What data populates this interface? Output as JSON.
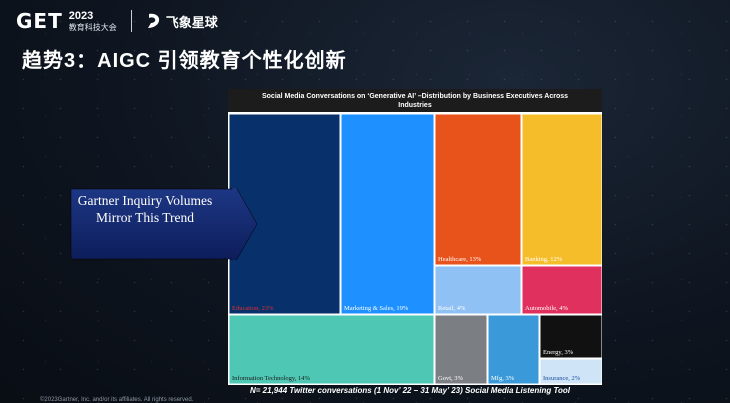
{
  "header": {
    "logo_mark": "GET",
    "logo_year": "2023",
    "logo_sub": "教育科技大会",
    "brand2": "飞象星球"
  },
  "slide": {
    "title": "趋势3：AIGC 引领教育个性化创新",
    "copyright": "©2023Gartner, Inc. and/or its affiliates. All rights reserved."
  },
  "callout": {
    "text": "Gartner Inquiry Volumes Mirror This Trend"
  },
  "chart_data": {
    "type": "treemap",
    "title": "Social Media Conversations on ‘Generative AI’ –Distribution by Business Executives Across Industries",
    "footnote": "N= 21,944 Twitter conversations (1 Nov’ 22 – 31 May’ 23) Social Media Listening Tool",
    "unit": "%",
    "items": [
      {
        "label": "Education, 23%",
        "name": "Education",
        "value": 23,
        "color": "#08306b",
        "label_color": "#e03030"
      },
      {
        "label": "Marketing & Sales, 19%",
        "name": "Marketing & Sales",
        "value": 19,
        "color": "#1e90ff",
        "label_color": "#ffffff"
      },
      {
        "label": "Healthcare, 13%",
        "name": "Healthcare",
        "value": 13,
        "color": "#e8521b",
        "label_color": "#ffffff"
      },
      {
        "label": "Banking, 12%",
        "name": "Banking",
        "value": 12,
        "color": "#f6bd2b",
        "label_color": "#ffffff"
      },
      {
        "label": "Retail, 4%",
        "name": "Retail",
        "value": 4,
        "color": "#8fc1f5",
        "label_color": "#ffffff"
      },
      {
        "label": "Automobile, 4%",
        "name": "Automobile",
        "value": 4,
        "color": "#e0315e",
        "label_color": "#ffffff"
      },
      {
        "label": "Information Technology, 14%",
        "name": "Information Technology",
        "value": 14,
        "color": "#4ec7b4",
        "label_color": "#1a1a1a"
      },
      {
        "label": "Govt, 3%",
        "name": "Govt",
        "value": 3,
        "color": "#7b7f84",
        "label_color": "#ffffff"
      },
      {
        "label": "Mfg, 3%",
        "name": "Mfg",
        "value": 3,
        "color": "#3a99d8",
        "label_color": "#ffffff"
      },
      {
        "label": "Energy, 3%",
        "name": "Energy",
        "value": 3,
        "color": "#111111",
        "label_color": "#ffffff"
      },
      {
        "label": "Insurance, 2%",
        "name": "Insurance",
        "value": 2,
        "color": "#cfe4f7",
        "label_color": "#1a4fa0"
      }
    ]
  }
}
